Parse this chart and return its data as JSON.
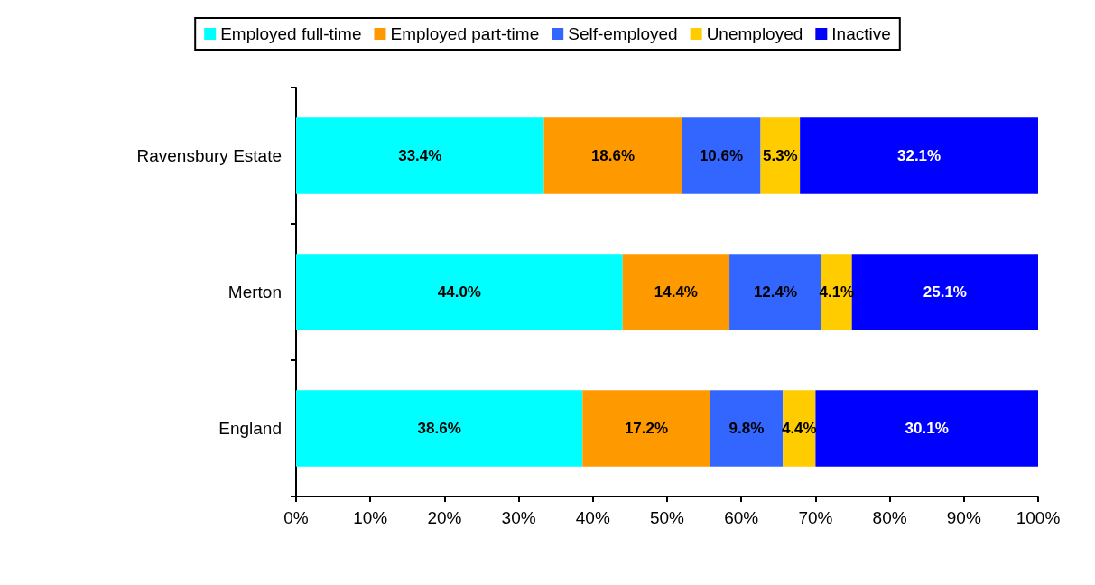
{
  "chart_data": {
    "type": "bar",
    "orientation": "horizontal",
    "stacked": true,
    "categories": [
      "Ravensbury Estate",
      "Merton",
      "England"
    ],
    "series": [
      {
        "name": "Employed full-time",
        "color": "#00ffff",
        "values": [
          33.4,
          44.0,
          38.6
        ],
        "value_labels": [
          "33.4%",
          "44.0%",
          "38.6%"
        ]
      },
      {
        "name": "Employed part-time",
        "color": "#ff9900",
        "values": [
          18.6,
          14.4,
          17.2
        ],
        "value_labels": [
          "18.6%",
          "14.4%",
          "17.2%"
        ]
      },
      {
        "name": "Self-employed",
        "color": "#3366ff",
        "values": [
          10.6,
          12.4,
          9.8
        ],
        "value_labels": [
          "10.6%",
          "12.4%",
          "9.8%"
        ]
      },
      {
        "name": "Unemployed",
        "color": "#ffcc00",
        "values": [
          5.3,
          4.1,
          4.4
        ],
        "value_labels": [
          "5.3%",
          "4.1%",
          "4.4%"
        ]
      },
      {
        "name": "Inactive",
        "color": "#0000ff",
        "values": [
          32.1,
          25.1,
          30.1
        ],
        "value_labels": [
          "32.1%",
          "25.1%",
          "30.1%"
        ]
      }
    ],
    "xlim": [
      0,
      100
    ],
    "xticks": [
      {
        "value": 0,
        "label": "0%"
      },
      {
        "value": 10,
        "label": "10%"
      },
      {
        "value": 20,
        "label": "20%"
      },
      {
        "value": 30,
        "label": "30%"
      },
      {
        "value": 40,
        "label": "40%"
      },
      {
        "value": 50,
        "label": "50%"
      },
      {
        "value": 60,
        "label": "60%"
      },
      {
        "value": 70,
        "label": "70%"
      },
      {
        "value": 80,
        "label": "80%"
      },
      {
        "value": 90,
        "label": "90%"
      },
      {
        "value": 100,
        "label": "100%"
      }
    ],
    "legend": "top",
    "grid": false
  }
}
